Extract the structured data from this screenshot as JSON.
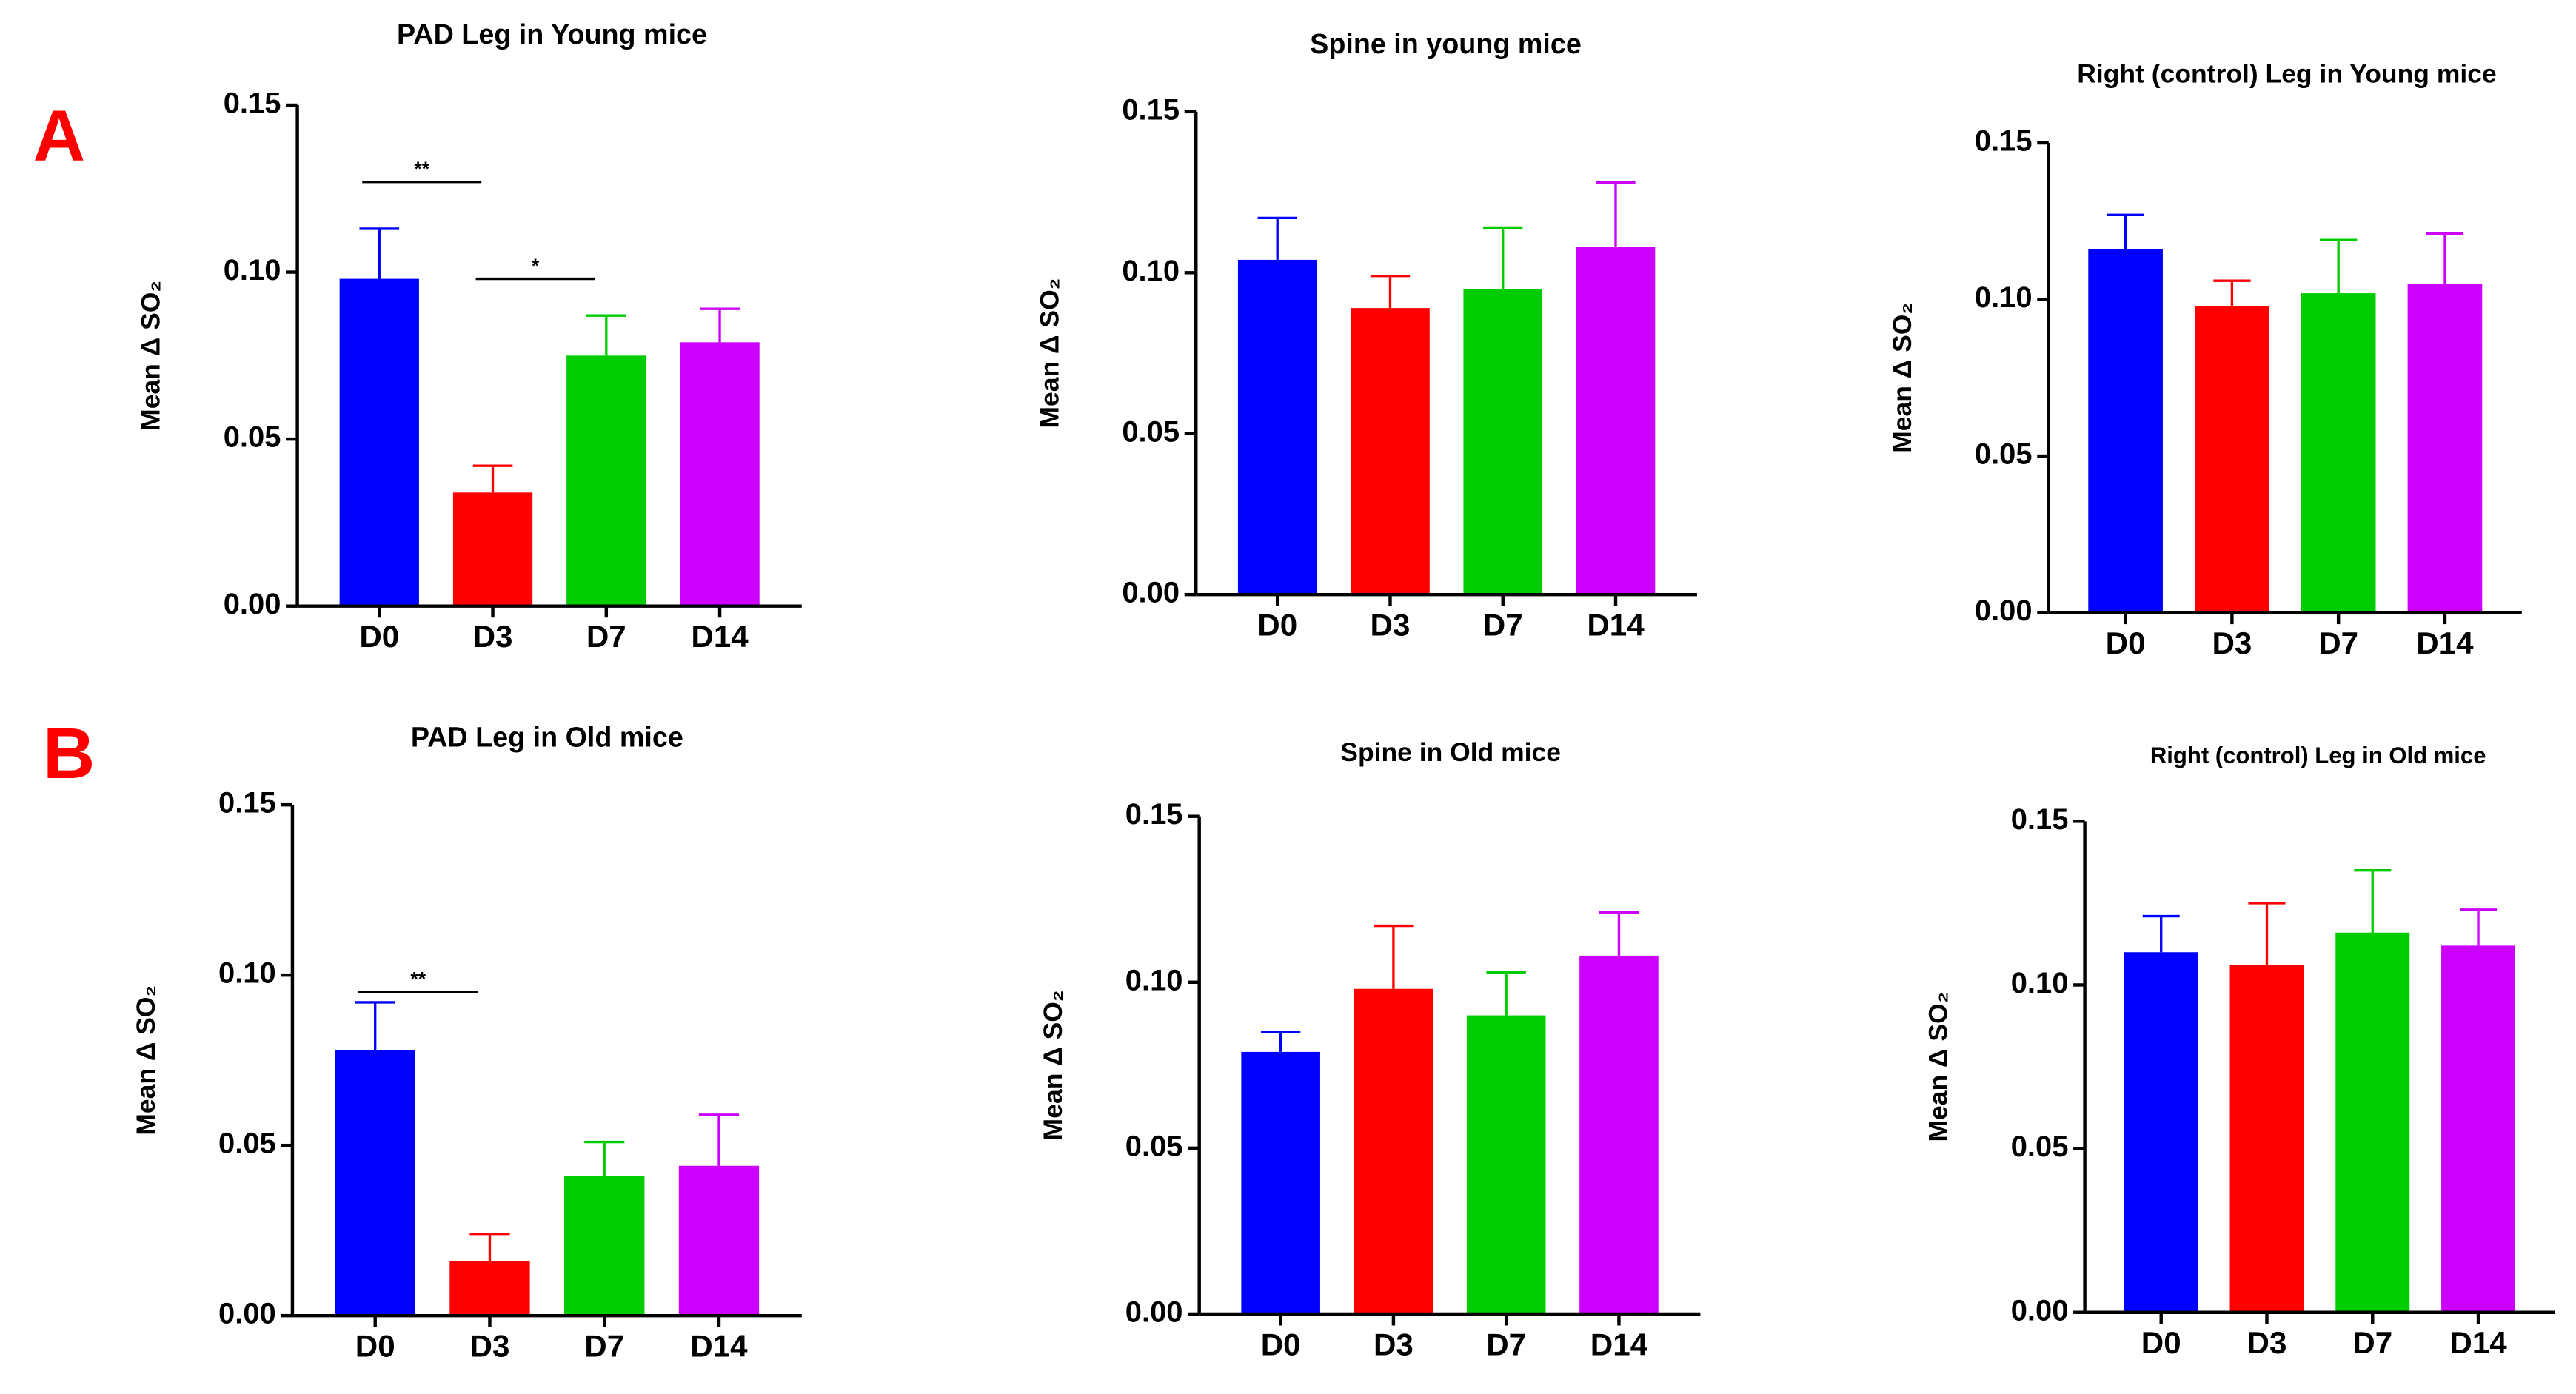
{
  "panel_labels": [
    "A",
    "B"
  ],
  "chart_data": [
    {
      "type": "bar",
      "title": "PAD Leg in Young mice",
      "y_label": "Mean Δ SO₂",
      "categories": [
        "D0",
        "D3",
        "D7",
        "D14"
      ],
      "values": [
        0.098,
        0.034,
        0.075,
        0.079
      ],
      "errors": [
        0.015,
        0.008,
        0.012,
        0.01
      ],
      "colors": [
        "#0000ff",
        "#ff0000",
        "#00cc00",
        "#cc00ff"
      ],
      "ylim": [
        0,
        0.15
      ],
      "yticks": [
        {
          "value": 0,
          "label": "0.00"
        },
        0.05,
        {
          "value": 0.1,
          "label": "0.10"
        },
        0.15
      ],
      "annotations": [
        {
          "label": "**",
          "y": 0.127,
          "x_from": "D0",
          "x_to": "D3"
        },
        {
          "label": "*",
          "y": 0.098,
          "x_from": "D3",
          "x_to": "D7"
        }
      ]
    },
    {
      "type": "bar",
      "title": "Spine in young mice",
      "y_label": "Mean Δ SO₂",
      "categories": [
        "D0",
        "D3",
        "D7",
        "D14"
      ],
      "values": [
        0.104,
        0.089,
        0.095,
        0.108
      ],
      "errors": [
        0.013,
        0.01,
        0.019,
        0.02
      ],
      "colors": [
        "#0000ff",
        "#ff0000",
        "#00cc00",
        "#cc00ff"
      ],
      "ylim": [
        0,
        0.15
      ],
      "yticks": [
        {
          "value": 0,
          "label": "0.00"
        },
        0.05,
        {
          "value": 0.1,
          "label": "0.10"
        },
        0.15
      ]
    },
    {
      "type": "bar",
      "title": "Right (control) Leg in Young mice",
      "y_label": "Mean Δ SO₂",
      "categories": [
        "D0",
        "D3",
        "D7",
        "D14"
      ],
      "values": [
        0.116,
        0.098,
        0.102,
        0.105
      ],
      "errors": [
        0.011,
        0.008,
        0.017,
        0.016
      ],
      "colors": [
        "#0000ff",
        "#ff0000",
        "#00cc00",
        "#cc00ff"
      ],
      "ylim": [
        0,
        0.15
      ],
      "yticks": [
        {
          "value": 0,
          "label": "0.00"
        },
        0.05,
        {
          "value": 0.1,
          "label": "0.10"
        },
        0.15
      ]
    },
    {
      "type": "bar",
      "title": "PAD Leg in Old mice",
      "y_label": "Mean Δ SO₂",
      "categories": [
        "D0",
        "D3",
        "D7",
        "D14"
      ],
      "values": [
        0.078,
        0.016,
        0.041,
        0.044
      ],
      "errors": [
        0.014,
        0.008,
        0.01,
        0.015
      ],
      "colors": [
        "#0000ff",
        "#ff0000",
        "#00cc00",
        "#cc00ff"
      ],
      "ylim": [
        0,
        0.15
      ],
      "yticks": [
        {
          "value": 0,
          "label": "0.00"
        },
        0.05,
        {
          "value": 0.1,
          "label": "0.10"
        },
        0.15
      ],
      "annotations": [
        {
          "label": "**",
          "y": 0.095,
          "x_from": "D0",
          "x_to": "D3"
        }
      ]
    },
    {
      "type": "bar",
      "title": "Spine in Old mice",
      "y_label": "Mean Δ SO₂",
      "categories": [
        "D0",
        "D3",
        "D7",
        "D14"
      ],
      "values": [
        0.079,
        0.098,
        0.09,
        0.108
      ],
      "errors": [
        0.006,
        0.019,
        0.013,
        0.013
      ],
      "colors": [
        "#0000ff",
        "#ff0000",
        "#00cc00",
        "#cc00ff"
      ],
      "ylim": [
        0,
        0.15
      ],
      "yticks": [
        {
          "value": 0,
          "label": "0.00"
        },
        0.05,
        {
          "value": 0.1,
          "label": "0.10"
        },
        0.15
      ]
    },
    {
      "type": "bar",
      "title": "Right (control) Leg in Old mice",
      "y_label": "Mean Δ SO₂",
      "categories": [
        "D0",
        "D3",
        "D7",
        "D14"
      ],
      "values": [
        0.11,
        0.106,
        0.116,
        0.112
      ],
      "errors": [
        0.011,
        0.019,
        0.019,
        0.011
      ],
      "colors": [
        "#0000ff",
        "#ff0000",
        "#00cc00",
        "#cc00ff"
      ],
      "ylim": [
        0,
        0.15
      ],
      "yticks": [
        {
          "value": 0,
          "label": "0.00"
        },
        0.05,
        {
          "value": 0.1,
          "label": "0.10"
        },
        0.15
      ]
    }
  ]
}
